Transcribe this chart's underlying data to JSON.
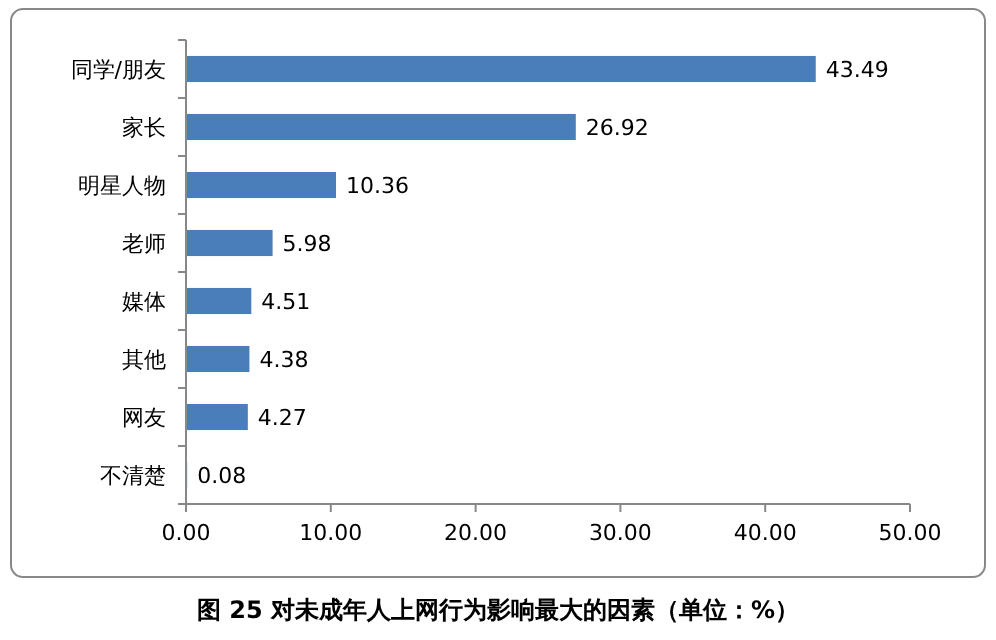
{
  "chart_data": {
    "type": "bar",
    "orientation": "horizontal",
    "title": "图 25 对未成年人上网行为影响最大的因素（单位：%）",
    "categories": [
      "同学/朋友",
      "家长",
      "明星人物",
      "老师",
      "媒体",
      "其他",
      "网友",
      "不清楚"
    ],
    "values": [
      43.49,
      26.92,
      10.36,
      5.98,
      4.51,
      4.38,
      4.27,
      0.08
    ],
    "color": "#4a7ebb",
    "data_labels": true,
    "xlim": [
      0,
      50
    ],
    "xticks": [
      {
        "value": 0,
        "label": "0.00"
      },
      {
        "value": 10,
        "label": "10.00"
      },
      {
        "value": 20,
        "label": "20.00"
      },
      {
        "value": 30,
        "label": "30.00"
      },
      {
        "value": 40,
        "label": "40.00"
      },
      {
        "value": 50,
        "label": "50.00"
      }
    ]
  }
}
